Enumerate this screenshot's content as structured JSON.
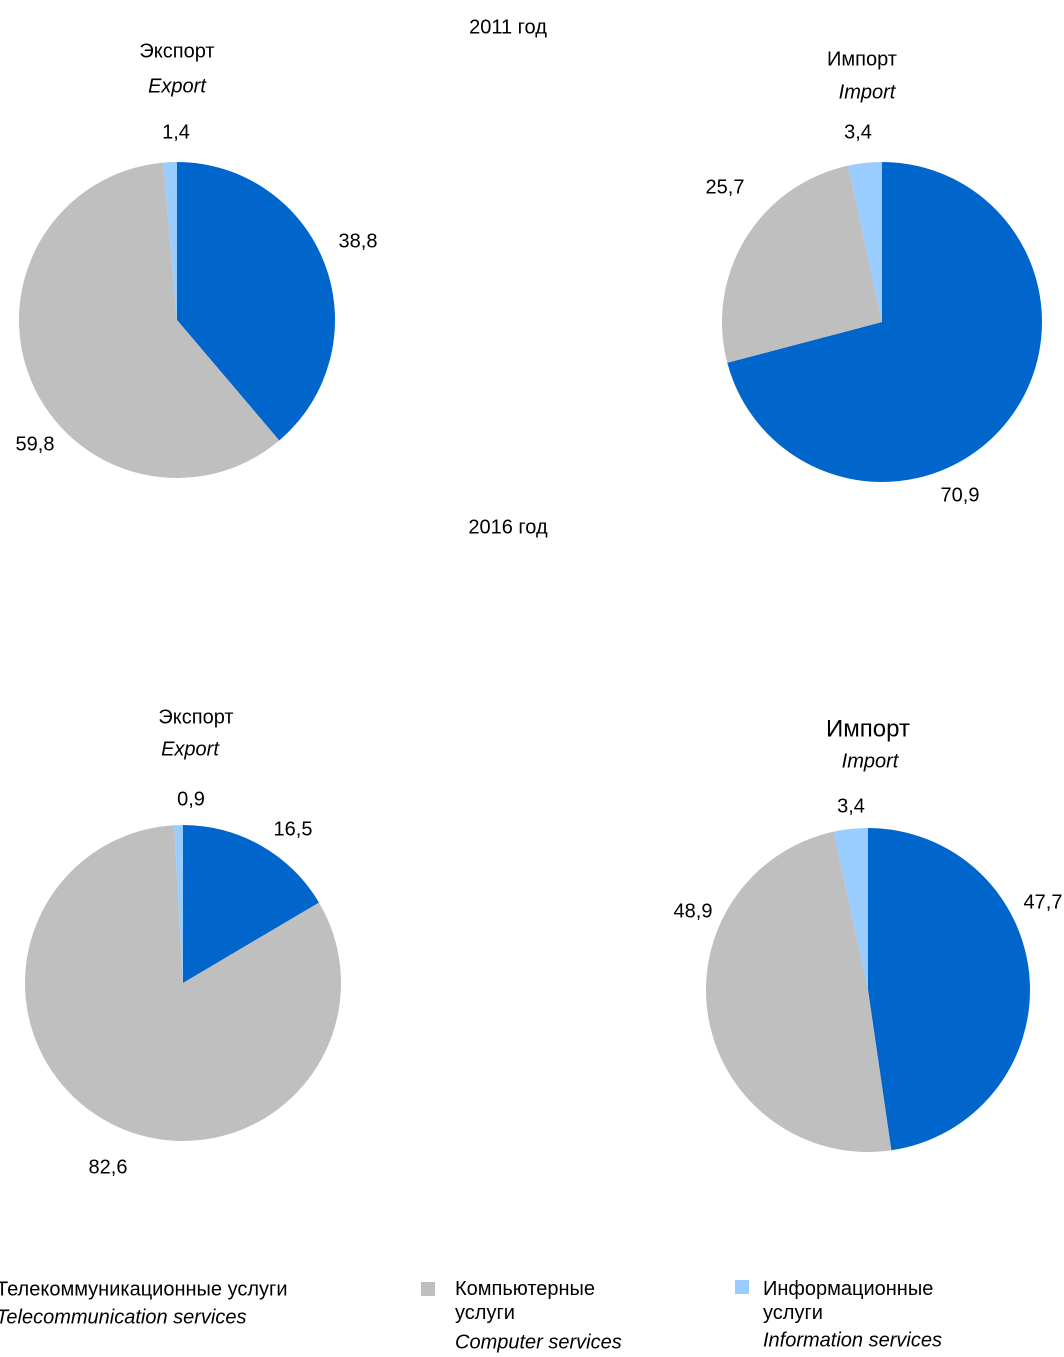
{
  "headings": [
    "2011 год",
    "2016 год"
  ],
  "legend": [
    {
      "name": "Телекоммуникационные услуги",
      "name_en": "Telecommunication services",
      "color": "#0066cc"
    },
    {
      "name": "Компьютерные услуги",
      "name_en": "Computer services",
      "color": "#bfbfbf"
    },
    {
      "name": "Информационные услуги",
      "name_en": "Information services",
      "color": "#99ccff"
    }
  ],
  "chart_data": [
    {
      "type": "pie",
      "title": "Экспорт",
      "subtitle": "Export",
      "values": [
        38.8,
        59.8,
        1.4
      ],
      "value_labels": [
        "38,8",
        "59,8",
        "1,4"
      ],
      "colors": [
        "#0066cc",
        "#bfbfbf",
        "#99ccff"
      ]
    },
    {
      "type": "pie",
      "title": "Импорт",
      "subtitle": "Import",
      "values": [
        70.9,
        25.7,
        3.4
      ],
      "value_labels": [
        "70,9",
        "25,7",
        "3,4"
      ],
      "colors": [
        "#0066cc",
        "#bfbfbf",
        "#99ccff"
      ]
    },
    {
      "type": "pie",
      "title": "Экспорт",
      "subtitle": "Export",
      "values": [
        16.5,
        82.6,
        0.9
      ],
      "value_labels": [
        "16,5",
        "82,6",
        "0,9"
      ],
      "colors": [
        "#0066cc",
        "#bfbfbf",
        "#99ccff"
      ]
    },
    {
      "type": "pie",
      "title": "Импорт",
      "subtitle": "Import",
      "values": [
        47.7,
        48.9,
        3.4
      ],
      "value_labels": [
        "47,7",
        "48,9",
        "3,4"
      ],
      "colors": [
        "#0066cc",
        "#bfbfbf",
        "#99ccff"
      ]
    }
  ]
}
